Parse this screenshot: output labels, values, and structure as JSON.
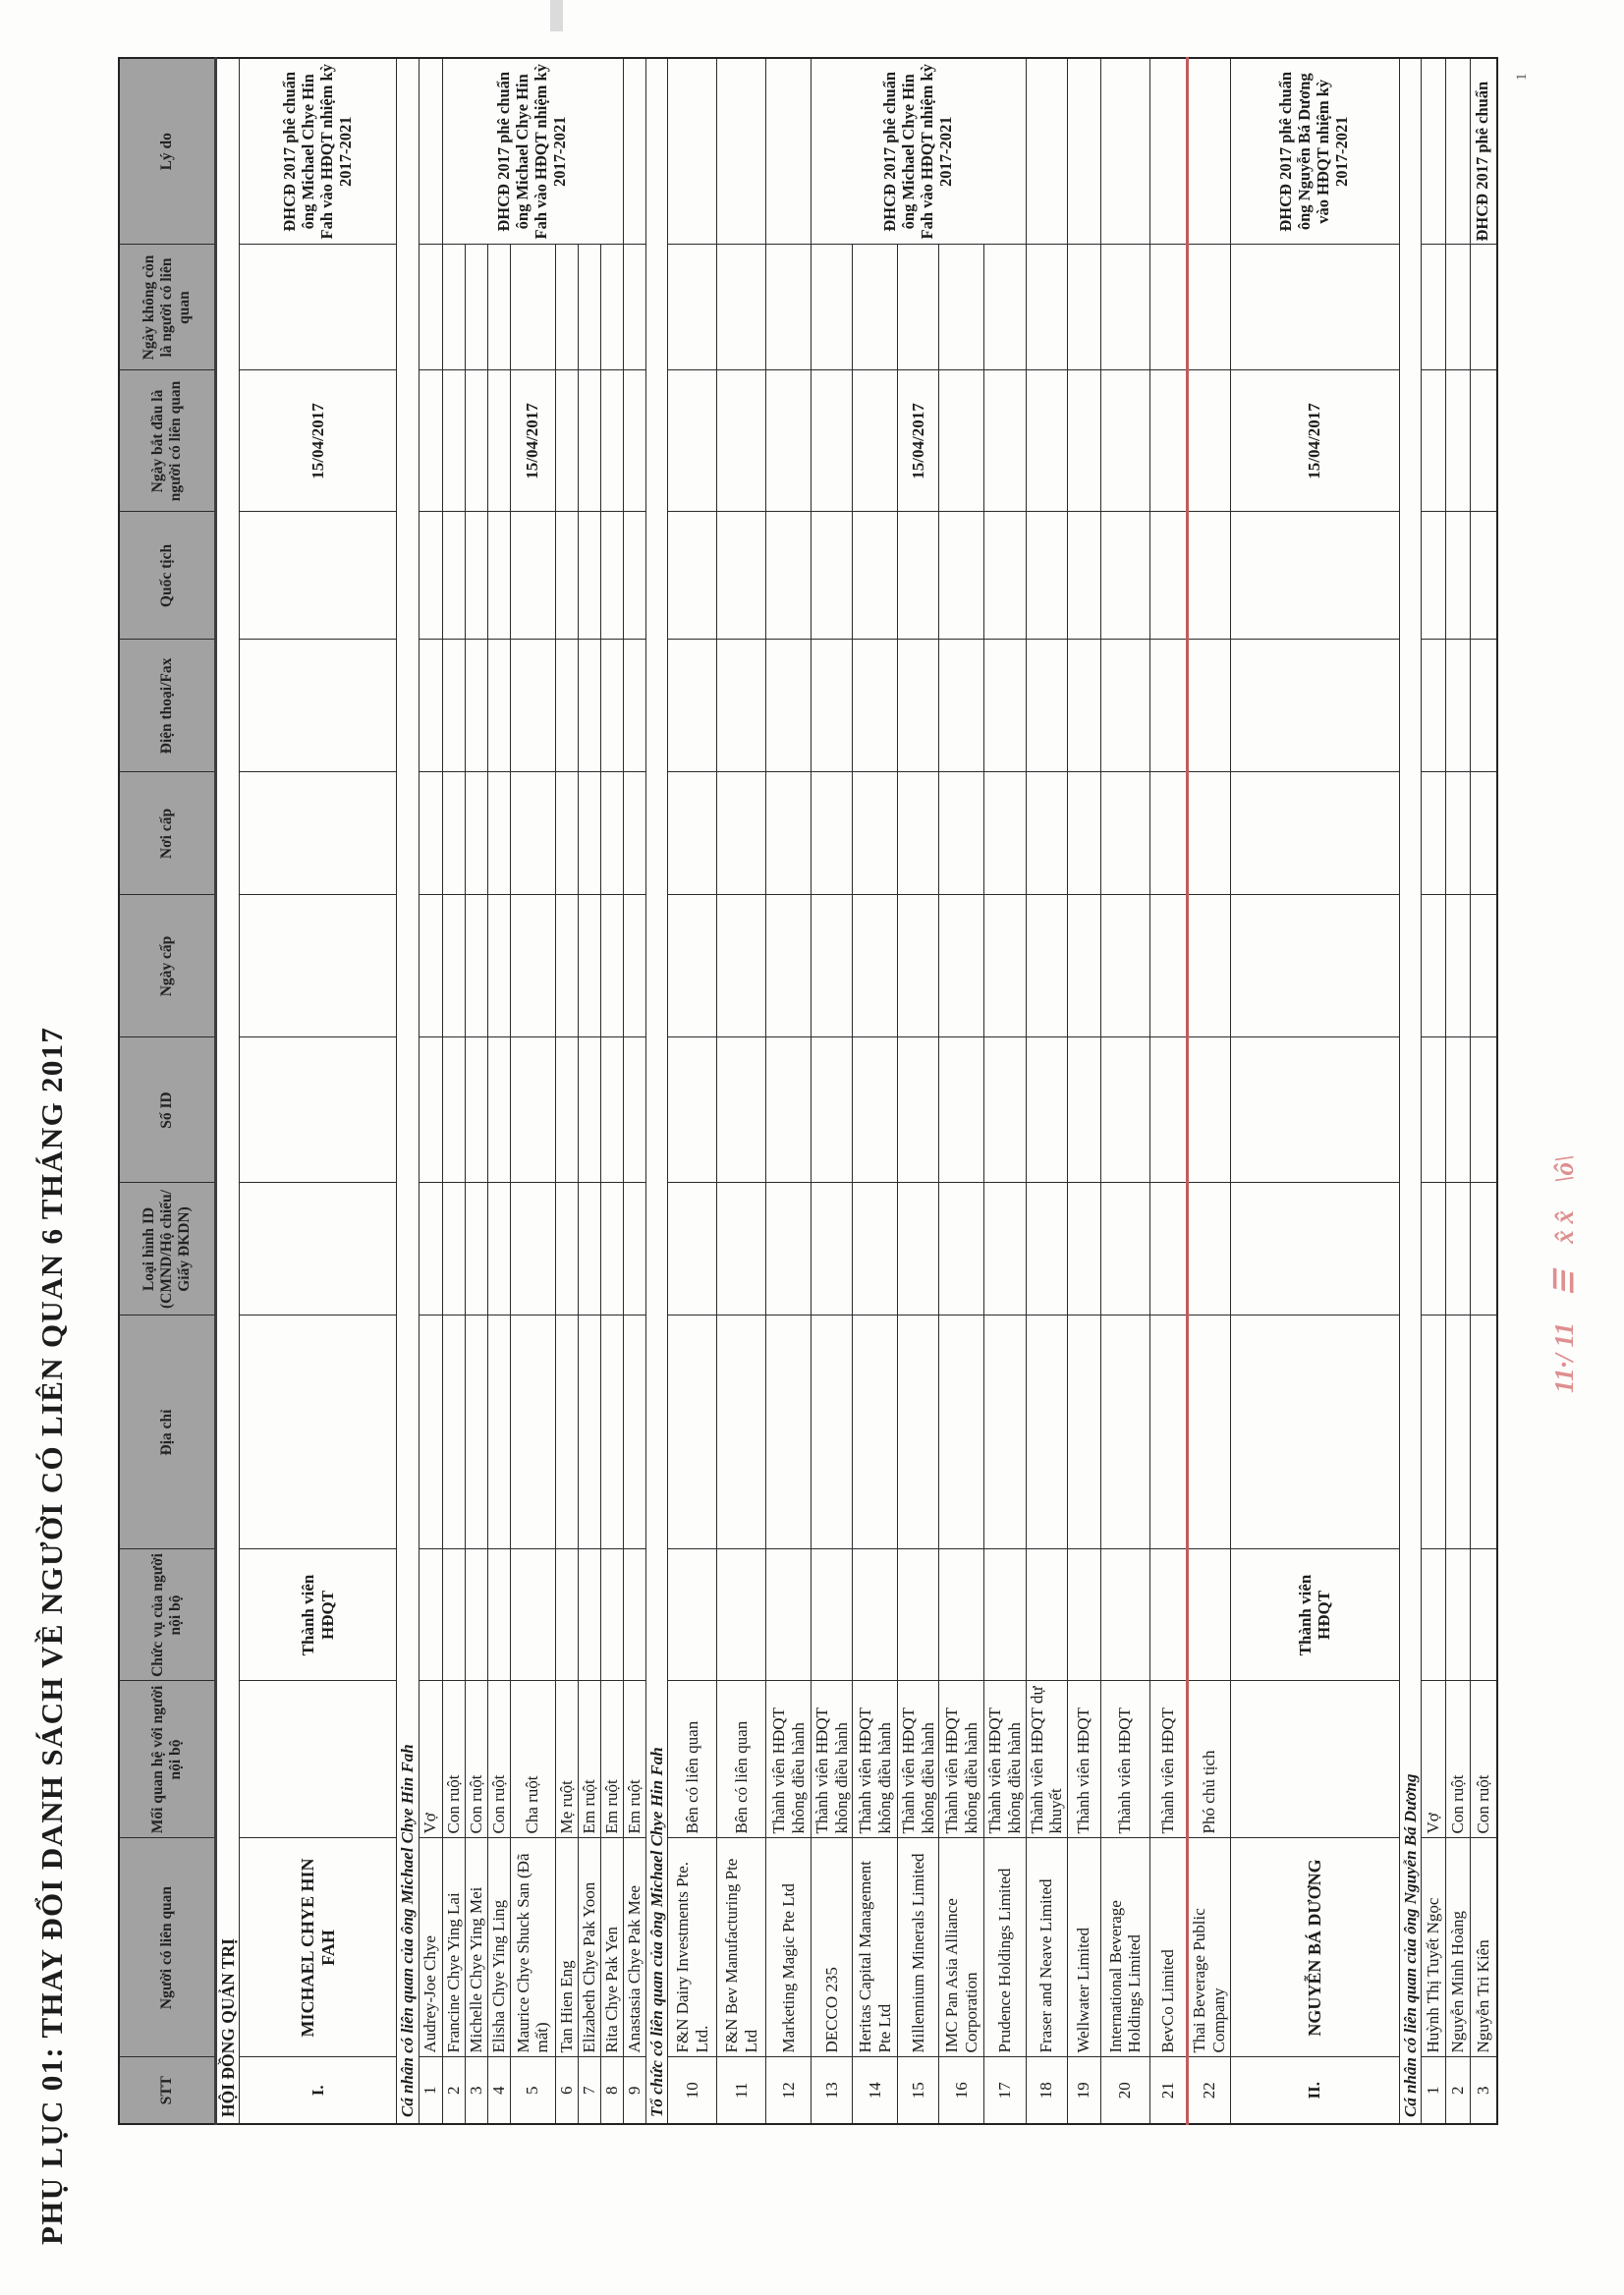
{
  "document": {
    "title": "PHỤ LỤC 01: THAY ĐỔI DANH SÁCH VỀ  NGƯỜI CÓ LIÊN QUAN 6  THÁNG 2017",
    "page_number": "1"
  },
  "table": {
    "columns": [
      "STT",
      "Người có liên quan",
      "Mối quan hệ với người nội bộ",
      "Chức vụ của người nội bộ",
      "Địa chỉ",
      "Loại hình ID (CMND/Hộ chiếu/ Giấy ĐKDN)",
      "Số ID",
      "Ngày cấp",
      "Nơi cấp",
      "Điện thoại/Fax",
      "Quốc tịch",
      "Ngày bắt đầu là người có liên quan",
      "Ngày không còn là người có liên quan",
      "Lý do"
    ],
    "rows": [
      {
        "group": "board",
        "label": "HỘI ĐỒNG QUẢN TRỊ"
      },
      {
        "stt": "I.",
        "name": "MICHAEL CHYE HIN FAH",
        "relation": "",
        "position": "Thành viên HĐQT",
        "start_date": "15/04/2017",
        "end_date": "",
        "reason": "ĐHCĐ 2017 phê chuẩn ông Michael Chye Hin Fah vào HĐQT nhiệm kỳ 2017-2021",
        "insider": true
      },
      {
        "group": "sub",
        "label": "Cá nhân có liên quan của ông Michael Chye Hin Fah"
      },
      {
        "stt": "1",
        "name": "Audrey-Joe Chye",
        "relation": "Vợ"
      },
      {
        "stt": "2",
        "name": "Francine Chye Ying Lai",
        "relation": "Con ruột",
        "reason": "ĐHCĐ 2017 phê chuẩn ông Michael Chye Hin Fah vào HĐQT nhiệm kỳ 2017-2021",
        "reason_span": 7
      },
      {
        "stt": "3",
        "name": "Michelle Chye Ying Mei",
        "relation": "Con ruột",
        "reason_skip": true
      },
      {
        "stt": "4",
        "name": "Elisha Chye Ying Ling",
        "relation": "Con ruột",
        "reason_skip": true
      },
      {
        "stt": "5",
        "name": "Maurice Chye Shuck San (Đã mất)",
        "relation": "Cha ruột",
        "start_date": "15/04/2017",
        "reason_skip": true
      },
      {
        "stt": "6",
        "name": "Tan Hien Eng",
        "relation": "Mẹ ruột",
        "reason_skip": true
      },
      {
        "stt": "7",
        "name": "Elizabeth Chye Pak Yoon",
        "relation": "Em ruột",
        "reason_skip": true
      },
      {
        "stt": "8",
        "name": "Rita Chye Pak Yen",
        "relation": "Em ruột",
        "reason_skip": true
      },
      {
        "stt": "9",
        "name": "Anastasia Chye Pak Mee",
        "relation": "Em ruột"
      },
      {
        "group": "sub",
        "label": "Tổ chức có liên quan của ông Michael Chye Hin Fah"
      },
      {
        "stt": "10",
        "name": "F&N Dairy Investments Pte. Ltd.",
        "relation": "Bên có liên quan"
      },
      {
        "stt": "11",
        "name": "F&N Bev Manufacturing Pte Ltd",
        "relation": "Bên có liên quan"
      },
      {
        "stt": "12",
        "name": "Marketing Magic Pte Ltd",
        "relation": "Thành viên HĐQT không điều hành"
      },
      {
        "stt": "13",
        "name": "DECCO 235",
        "relation": "Thành viên HĐQT không điều hành",
        "reason": "ĐHCĐ 2017 phê chuẩn ông Michael Chye Hin Fah vào HĐQT nhiệm kỳ 2017-2021",
        "reason_span": 5
      },
      {
        "stt": "14",
        "name": "Heritas Capital Management Pte Ltd",
        "relation": "Thành viên HĐQT không điều hành",
        "reason_skip": true
      },
      {
        "stt": "15",
        "name": "Millennium Minerals Limited",
        "relation": "Thành viên HĐQT không điều hành",
        "start_date": "15/04/2017",
        "reason_skip": true
      },
      {
        "stt": "16",
        "name": "IMC Pan Asia Alliance Corporation",
        "relation": "Thành viên HĐQT không điều hành",
        "reason_skip": true
      },
      {
        "stt": "17",
        "name": "Prudence Holdings Limited",
        "relation": "Thành viên HĐQT không điều hành",
        "reason_skip": true
      },
      {
        "stt": "18",
        "name": "Fraser and Neave Limited",
        "relation": "Thành viên HĐQT dự khuyết"
      },
      {
        "stt": "19",
        "name": "Wellwater Limited",
        "relation": "Thành viên HĐQT"
      },
      {
        "stt": "20",
        "name": "International Beverage Holdings Limited",
        "relation": "Thành viên HĐQT"
      },
      {
        "stt": "21",
        "name": "BevCo Limited",
        "relation": "Thành viên HĐQT"
      },
      {
        "stt": "22",
        "name": "Thai Beverage Public Company",
        "relation": "Phó chủ tịch",
        "red_top": true
      },
      {
        "stt": "II.",
        "name": "NGUYỄN BÁ DƯƠNG",
        "relation": "",
        "position": "Thành viên HĐQT",
        "start_date": "15/04/2017",
        "end_date": "",
        "reason": "ĐHCĐ 2017 phê chuẩn ông Nguyễn Bá Dương vào HĐQT nhiệm kỳ 2017-2021",
        "insider": true
      },
      {
        "group": "sub",
        "label": "Cá nhân có liên quan của ông Nguyễn Bá Dương"
      },
      {
        "stt": "1",
        "name": "Huỳnh Thị Tuyết Ngọc",
        "relation": "Vợ"
      },
      {
        "stt": "2",
        "name": "Nguyễn Minh Hoàng",
        "relation": "Con ruột"
      },
      {
        "stt": "3",
        "name": "Nguyễn Tri Kiên",
        "relation": "Con ruột",
        "reason": "ĐHCĐ 2017 phê chuẩn",
        "reason_nowrap": true
      }
    ]
  },
  "annotations": {
    "handwriting_marks": [
      "11·/ 11",
      "☰",
      "x̂ x̂",
      "\\ô\\"
    ],
    "handwriting_color": "#de8f8f",
    "red_line_color": "#c25b5b"
  },
  "colors": {
    "header_bg": "#a2a2a2",
    "border": "#2b2b2b",
    "text": "#1c1c1c"
  }
}
